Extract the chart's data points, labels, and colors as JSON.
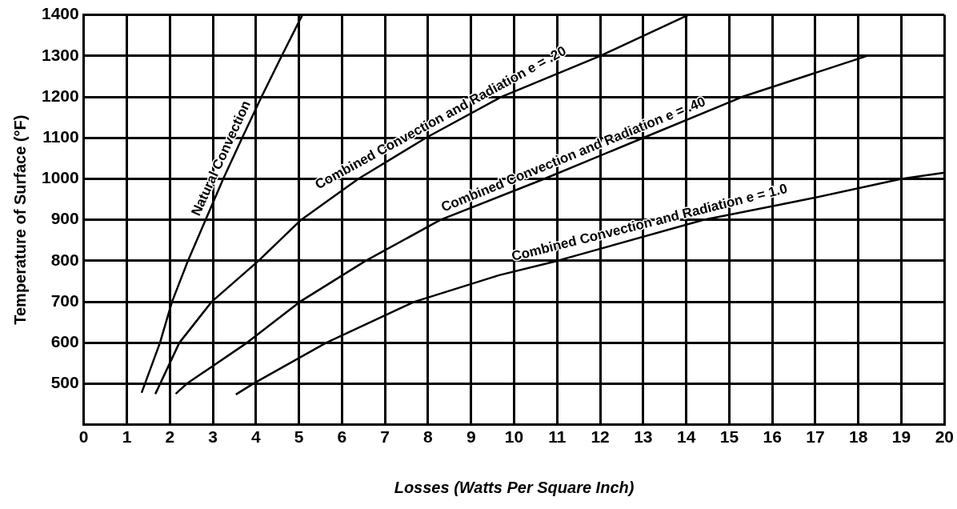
{
  "chart_data": {
    "type": "line",
    "xlabel": "Losses (Watts Per Square Inch)",
    "ylabel": "Temperature of Surface (°F)",
    "xlim": [
      0,
      20
    ],
    "xticks": [
      0,
      1,
      2,
      3,
      4,
      5,
      6,
      7,
      8,
      9,
      10,
      11,
      12,
      13,
      14,
      15,
      16,
      17,
      18,
      19,
      20
    ],
    "ylim": [
      400,
      1400
    ],
    "yticks": [
      {
        "value": 400,
        "label": null
      },
      500,
      600,
      700,
      800,
      900,
      1000,
      1100,
      1200,
      1300,
      1400
    ],
    "grid": true,
    "legend": false,
    "marker": "none",
    "line_style": "solid",
    "series": [
      {
        "name": "Natural Convection",
        "color": "#000000",
        "x": [
          1.35,
          1.77,
          2.05,
          2.42,
          2.83,
          3.24,
          3.68,
          4.13,
          4.6,
          5.08
        ],
        "values": [
          480,
          600,
          700,
          800,
          900,
          1000,
          1100,
          1200,
          1300,
          1400
        ]
      },
      {
        "name": "Combined Convection and Radiation e = .20",
        "color": "#000000",
        "x": [
          1.67,
          2.22,
          2.97,
          4.06,
          5.05,
          6.38,
          7.95,
          9.7,
          12.0,
          14.05
        ],
        "values": [
          477,
          600,
          700,
          800,
          900,
          1000,
          1100,
          1200,
          1300,
          1400
        ]
      },
      {
        "name": "Combined Convection and Radiation e = .40",
        "color": "#000000",
        "x": [
          2.15,
          2.39,
          3.79,
          5.02,
          6.55,
          8.29,
          10.7,
          13.0,
          15.3,
          18.2
        ],
        "values": [
          477,
          500,
          600,
          700,
          800,
          900,
          1000,
          1100,
          1200,
          1300
        ]
      },
      {
        "name": "Combined Convection and Radiation e = 1.0",
        "color": "#000000",
        "x": [
          3.55,
          3.93,
          5.63,
          7.68,
          9.65,
          11.0,
          14.4,
          16.8,
          19.0,
          20
        ],
        "values": [
          475,
          500,
          600,
          700,
          765,
          800,
          900,
          950,
          1000,
          1015
        ]
      }
    ]
  }
}
